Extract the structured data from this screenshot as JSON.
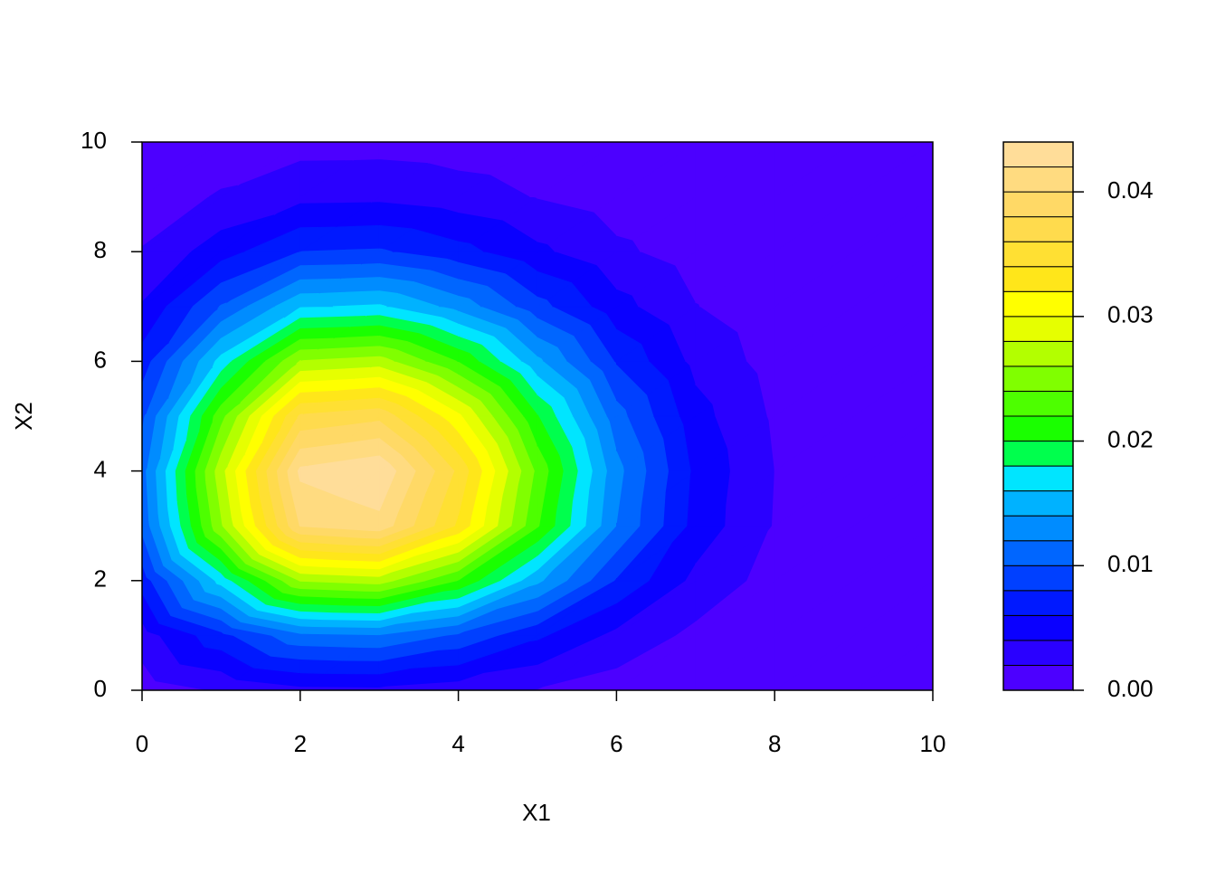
{
  "chart_data": {
    "type": "filled-contour",
    "x_label": "X1",
    "y_label": "X2",
    "x": [
      0,
      1,
      2,
      3,
      4,
      5,
      6,
      7,
      8,
      9,
      10
    ],
    "y": [
      0,
      1,
      2,
      3,
      4,
      5,
      6,
      7,
      8,
      9,
      10
    ],
    "z": [
      [
        0.0009,
        0.0022,
        0.00343,
        0.00353,
        0.00287,
        0.0019,
        0.00102,
        0.00045,
        0.00016,
        5e-05,
        1e-05
      ],
      [
        0.00303,
        0.00737,
        0.01149,
        0.01184,
        0.00963,
        0.00637,
        0.00343,
        0.0015,
        0.00053,
        0.00015,
        4e-05
      ],
      [
        0.00688,
        0.01677,
        0.02613,
        0.02693,
        0.0219,
        0.01447,
        0.00779,
        0.00341,
        0.00121,
        0.00035,
        8e-05
      ],
      [
        0.01056,
        0.02574,
        0.04011,
        0.04134,
        0.03363,
        0.02222,
        0.01196,
        0.00524,
        0.00186,
        0.00054,
        0.00013
      ],
      [
        0.01117,
        0.02723,
        0.04244,
        0.04374,
        0.03557,
        0.02351,
        0.01265,
        0.00554,
        0.00197,
        0.00057,
        0.00014
      ],
      [
        0.00956,
        0.02331,
        0.03633,
        0.03744,
        0.03045,
        0.02012,
        0.01083,
        0.00474,
        0.00169,
        0.00049,
        0.00012
      ],
      [
        0.00688,
        0.01677,
        0.02613,
        0.02693,
        0.0219,
        0.01447,
        0.00779,
        0.00341,
        0.00121,
        0.00035,
        8e-05
      ],
      [
        0.00416,
        0.01014,
        0.0158,
        0.01628,
        0.01324,
        0.00875,
        0.00471,
        0.00206,
        0.00073,
        0.00021,
        5e-05
      ],
      [
        0.00211,
        0.00514,
        0.00801,
        0.00825,
        0.00671,
        0.00443,
        0.00239,
        0.00105,
        0.00037,
        0.00011,
        3e-05
      ],
      [
        0.0009,
        0.0022,
        0.00343,
        0.00353,
        0.00287,
        0.0019,
        0.00102,
        0.00045,
        0.00016,
        5e-05,
        1e-05
      ],
      [
        0.00032,
        0.00079,
        0.00123,
        0.00127,
        0.00103,
        0.00068,
        0.00037,
        0.00016,
        6e-05,
        2e-05,
        0.0
      ]
    ],
    "levels": [
      0,
      0.002,
      0.004,
      0.006,
      0.008,
      0.01,
      0.012,
      0.014,
      0.016,
      0.018,
      0.02,
      0.022,
      0.024,
      0.026,
      0.028,
      0.03,
      0.032,
      0.034,
      0.036,
      0.038,
      0.04,
      0.042,
      0.044
    ],
    "colors": [
      "#4C00FF",
      "#2A00FF",
      "#0A00FF",
      "#0019FF",
      "#0040FF",
      "#0066FF",
      "#008CFF",
      "#00B2FF",
      "#00E5FF",
      "#00FF4D",
      "#1AFF00",
      "#4DFF00",
      "#80FF00",
      "#B3FF00",
      "#E6FF00",
      "#FFFF00",
      "#FFE61A",
      "#FFE033",
      "#FFDB4D",
      "#FFD966",
      "#FFDB80",
      "#FFDD99",
      "#FFE0B3"
    ],
    "xlim": [
      0,
      10
    ],
    "ylim": [
      0,
      10
    ],
    "xticks": [
      0,
      2,
      4,
      6,
      8,
      10
    ],
    "yticks": [
      0,
      2,
      4,
      6,
      8,
      10
    ],
    "colorbar_ticks": [
      {
        "value": 0,
        "label": "0.00"
      },
      {
        "value": 0.01,
        "label": "0.01"
      },
      {
        "value": 0.02,
        "label": "0.02"
      },
      {
        "value": 0.03,
        "label": "0.03"
      },
      {
        "value": 0.04,
        "label": "0.04"
      }
    ]
  }
}
